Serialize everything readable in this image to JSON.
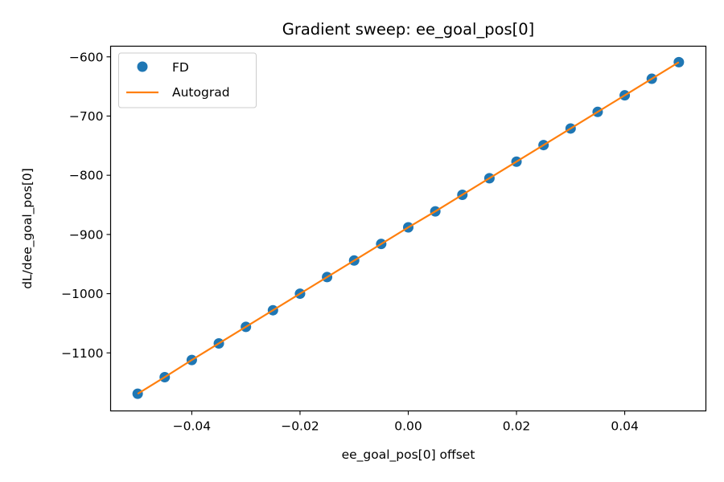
{
  "chart_data": {
    "type": "scatter",
    "title": "Gradient sweep: ee_goal_pos[0]",
    "xlabel": "ee_goal_pos[0] offset",
    "ylabel": "dL/dee_goal_pos[0]",
    "xlim": [
      -0.055,
      0.055
    ],
    "ylim": [
      -1198,
      -582
    ],
    "x_ticks": [
      -0.04,
      -0.02,
      0.0,
      0.02,
      0.04
    ],
    "x_tick_labels": [
      "−0.04",
      "−0.02",
      "0.00",
      "0.02",
      "0.04"
    ],
    "y_ticks": [
      -1100,
      -1000,
      -900,
      -800,
      -700,
      -600
    ],
    "y_tick_labels": [
      "−1100",
      "−1000",
      "−900",
      "−800",
      "−700",
      "−600"
    ],
    "grid": false,
    "legend_position": "top-left",
    "series": [
      {
        "name": "FD",
        "kind": "markers",
        "color": "#1f77b4",
        "x": [
          -0.05,
          -0.045,
          -0.04,
          -0.035,
          -0.03,
          -0.025,
          -0.02,
          -0.015,
          -0.01,
          -0.005,
          0.0,
          0.005,
          0.01,
          0.015,
          0.02,
          0.025,
          0.03,
          0.035,
          0.04,
          0.045,
          0.05
        ],
        "y": [
          -1169,
          -1141,
          -1112,
          -1084,
          -1056,
          -1028,
          -1000,
          -972,
          -944,
          -916,
          -888,
          -861,
          -833,
          -805,
          -777,
          -749,
          -721,
          -693,
          -665,
          -637,
          -609
        ]
      },
      {
        "name": "Autograd",
        "kind": "line",
        "color": "#ff7f0e",
        "x": [
          -0.05,
          -0.045,
          -0.04,
          -0.035,
          -0.03,
          -0.025,
          -0.02,
          -0.015,
          -0.01,
          -0.005,
          0.0,
          0.005,
          0.01,
          0.015,
          0.02,
          0.025,
          0.03,
          0.035,
          0.04,
          0.045,
          0.05
        ],
        "y": [
          -1169,
          -1141,
          -1112,
          -1084,
          -1056,
          -1028,
          -1000,
          -972,
          -944,
          -916,
          -888,
          -861,
          -833,
          -805,
          -777,
          -749,
          -721,
          -693,
          -665,
          -637,
          -609
        ]
      }
    ]
  }
}
